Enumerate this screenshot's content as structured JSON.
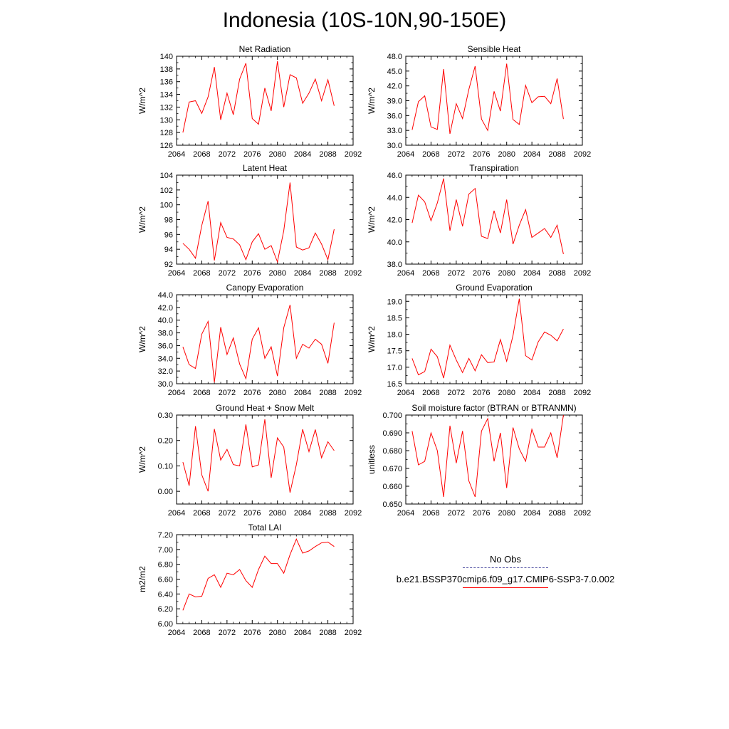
{
  "title": "Indonesia (10S-10N,90-150E)",
  "legend": {
    "obs_label": "No Obs",
    "case_label": "b.e21.BSSP370cmip6.f09_g17.CMIP6-SSP3-7.0.002",
    "obs_color": "#4a4aa0",
    "case_color": "#ff0000"
  },
  "chart_data": [
    {
      "type": "line",
      "title": "Net Radiation",
      "ylabel": "W/m^2",
      "xlim": [
        2064,
        2092
      ],
      "xticks": [
        "2064",
        "2068",
        "2072",
        "2076",
        "2080",
        "2084",
        "2088",
        "2092"
      ],
      "ylim": [
        126,
        140
      ],
      "yticks": [
        "126",
        "128",
        "130",
        "132",
        "134",
        "136",
        "138",
        "140"
      ],
      "x": [
        2065,
        2066,
        2067,
        2068,
        2069,
        2070,
        2071,
        2072,
        2073,
        2074,
        2075,
        2076,
        2077,
        2078,
        2079,
        2080,
        2081,
        2082,
        2083,
        2084,
        2085,
        2086,
        2087,
        2088,
        2089
      ],
      "values": [
        128.0,
        132.8,
        133.0,
        131.0,
        133.6,
        138.3,
        130.0,
        134.2,
        130.8,
        136.4,
        138.9,
        130.2,
        129.3,
        135.0,
        131.4,
        139.2,
        132.0,
        137.1,
        136.6,
        132.6,
        134.2,
        136.4,
        133.0,
        136.3,
        132.2
      ]
    },
    {
      "type": "line",
      "title": "Sensible Heat",
      "ylabel": "W/m^2",
      "xlim": [
        2064,
        2092
      ],
      "xticks": [
        "2064",
        "2068",
        "2072",
        "2076",
        "2080",
        "2084",
        "2088",
        "2092"
      ],
      "ylim": [
        30,
        48
      ],
      "yticks": [
        "30.0",
        "33.0",
        "36.0",
        "39.0",
        "42.0",
        "45.0",
        "48.0"
      ],
      "x": [
        2065,
        2066,
        2067,
        2068,
        2069,
        2070,
        2071,
        2072,
        2073,
        2074,
        2075,
        2076,
        2077,
        2078,
        2079,
        2080,
        2081,
        2082,
        2083,
        2084,
        2085,
        2086,
        2087,
        2088,
        2089
      ],
      "values": [
        33.1,
        38.8,
        40.0,
        33.7,
        33.2,
        45.4,
        32.3,
        38.4,
        35.4,
        41.3,
        46.0,
        35.3,
        33.0,
        40.9,
        36.9,
        46.5,
        35.2,
        34.2,
        42.1,
        38.6,
        39.8,
        39.9,
        38.4,
        43.5,
        35.3
      ]
    },
    {
      "type": "line",
      "title": "Latent Heat",
      "ylabel": "W/m^2",
      "xlim": [
        2064,
        2092
      ],
      "xticks": [
        "2064",
        "2068",
        "2072",
        "2076",
        "2080",
        "2084",
        "2088",
        "2092"
      ],
      "ylim": [
        92,
        104
      ],
      "yticks": [
        "92",
        "94",
        "96",
        "98",
        "100",
        "102",
        "104"
      ],
      "x": [
        2065,
        2066,
        2067,
        2068,
        2069,
        2070,
        2071,
        2072,
        2073,
        2074,
        2075,
        2076,
        2077,
        2078,
        2079,
        2080,
        2081,
        2082,
        2083,
        2084,
        2085,
        2086,
        2087,
        2088,
        2089
      ],
      "values": [
        94.8,
        94.0,
        92.8,
        97.2,
        100.5,
        92.5,
        97.6,
        95.6,
        95.4,
        94.6,
        92.6,
        95.0,
        96.1,
        94.0,
        94.5,
        92.3,
        96.5,
        103.0,
        94.3,
        93.9,
        94.2,
        96.2,
        94.7,
        92.6,
        96.7
      ]
    },
    {
      "type": "line",
      "title": "Transpiration",
      "ylabel": "W/m^2",
      "xlim": [
        2064,
        2092
      ],
      "xticks": [
        "2064",
        "2068",
        "2072",
        "2076",
        "2080",
        "2084",
        "2088",
        "2092"
      ],
      "ylim": [
        38,
        46
      ],
      "yticks": [
        "38.0",
        "40.0",
        "42.0",
        "44.0",
        "46.0"
      ],
      "x": [
        2065,
        2066,
        2067,
        2068,
        2069,
        2070,
        2071,
        2072,
        2073,
        2074,
        2075,
        2076,
        2077,
        2078,
        2079,
        2080,
        2081,
        2082,
        2083,
        2084,
        2085,
        2086,
        2087,
        2088,
        2089
      ],
      "values": [
        41.7,
        44.2,
        43.6,
        41.9,
        43.5,
        45.7,
        41.0,
        43.8,
        41.4,
        44.3,
        44.8,
        40.5,
        40.3,
        42.8,
        40.8,
        43.8,
        39.8,
        41.5,
        42.9,
        40.4,
        40.8,
        41.2,
        40.4,
        41.5,
        38.9
      ]
    },
    {
      "type": "line",
      "title": "Canopy Evaporation",
      "ylabel": "W/m^2",
      "xlim": [
        2064,
        2092
      ],
      "xticks": [
        "2064",
        "2068",
        "2072",
        "2076",
        "2080",
        "2084",
        "2088",
        "2092"
      ],
      "ylim": [
        30,
        44
      ],
      "yticks": [
        "30.0",
        "32.0",
        "34.0",
        "36.0",
        "38.0",
        "40.0",
        "42.0",
        "44.0"
      ],
      "x": [
        2065,
        2066,
        2067,
        2068,
        2069,
        2070,
        2071,
        2072,
        2073,
        2074,
        2075,
        2076,
        2077,
        2078,
        2079,
        2080,
        2081,
        2082,
        2083,
        2084,
        2085,
        2086,
        2087,
        2088,
        2089
      ],
      "values": [
        35.8,
        33.0,
        32.4,
        37.8,
        39.8,
        30.2,
        38.9,
        34.6,
        37.2,
        33.1,
        30.8,
        37.0,
        38.8,
        34.0,
        35.8,
        31.2,
        38.8,
        42.4,
        34.0,
        36.2,
        35.6,
        37.0,
        36.2,
        33.2,
        39.6
      ]
    },
    {
      "type": "line",
      "title": "Ground Evaporation",
      "ylabel": "W/m^2",
      "xlim": [
        2064,
        2092
      ],
      "xticks": [
        "2064",
        "2068",
        "2072",
        "2076",
        "2080",
        "2084",
        "2088",
        "2092"
      ],
      "ylim": [
        16.5,
        19.2
      ],
      "yticks": [
        "16.5",
        "17.0",
        "17.5",
        "18.0",
        "18.5",
        "19.0"
      ],
      "x": [
        2065,
        2066,
        2067,
        2068,
        2069,
        2070,
        2071,
        2072,
        2073,
        2074,
        2075,
        2076,
        2077,
        2078,
        2079,
        2080,
        2081,
        2082,
        2083,
        2084,
        2085,
        2086,
        2087,
        2088,
        2089
      ],
      "values": [
        17.27,
        16.77,
        16.87,
        17.55,
        17.32,
        16.67,
        17.67,
        17.22,
        16.84,
        17.27,
        16.89,
        17.38,
        17.14,
        17.16,
        17.84,
        17.18,
        17.96,
        19.08,
        17.35,
        17.22,
        17.77,
        18.07,
        17.97,
        17.8,
        18.16
      ]
    },
    {
      "type": "line",
      "title": "Ground Heat + Snow Melt",
      "ylabel": "W/m^2",
      "xlim": [
        2064,
        2092
      ],
      "xticks": [
        "2064",
        "2068",
        "2072",
        "2076",
        "2080",
        "2084",
        "2088",
        "2092"
      ],
      "ylim": [
        -0.05,
        0.3
      ],
      "yticks": [
        "0.00",
        "0.10",
        "0.20",
        "0.30"
      ],
      "x": [
        2065,
        2066,
        2067,
        2068,
        2069,
        2070,
        2071,
        2072,
        2073,
        2074,
        2075,
        2076,
        2077,
        2078,
        2079,
        2080,
        2081,
        2082,
        2083,
        2084,
        2085,
        2086,
        2087,
        2088,
        2089
      ],
      "values": [
        0.115,
        0.022,
        0.256,
        0.065,
        0.0,
        0.245,
        0.123,
        0.165,
        0.105,
        0.1,
        0.263,
        0.096,
        0.104,
        0.283,
        0.053,
        0.21,
        0.174,
        -0.005,
        0.105,
        0.244,
        0.156,
        0.243,
        0.132,
        0.195,
        0.16
      ]
    },
    {
      "type": "line",
      "title": "Soil moisture factor (BTRAN or BTRANMN)",
      "ylabel": "unitless",
      "xlim": [
        2064,
        2092
      ],
      "xticks": [
        "2064",
        "2068",
        "2072",
        "2076",
        "2080",
        "2084",
        "2088",
        "2092"
      ],
      "ylim": [
        0.65,
        0.7
      ],
      "yticks": [
        "0.650",
        "0.660",
        "0.670",
        "0.680",
        "0.690",
        "0.700"
      ],
      "x": [
        2065,
        2066,
        2067,
        2068,
        2069,
        2070,
        2071,
        2072,
        2073,
        2074,
        2075,
        2076,
        2077,
        2078,
        2079,
        2080,
        2081,
        2082,
        2083,
        2084,
        2085,
        2086,
        2087,
        2088,
        2089
      ],
      "values": [
        0.691,
        0.672,
        0.674,
        0.69,
        0.68,
        0.654,
        0.694,
        0.673,
        0.691,
        0.663,
        0.654,
        0.691,
        0.698,
        0.674,
        0.69,
        0.659,
        0.693,
        0.681,
        0.674,
        0.692,
        0.682,
        0.682,
        0.69,
        0.676,
        0.7
      ]
    },
    {
      "type": "line",
      "title": "Total LAI",
      "ylabel": "m2/m2",
      "xlim": [
        2064,
        2092
      ],
      "xticks": [
        "2064",
        "2068",
        "2072",
        "2076",
        "2080",
        "2084",
        "2088",
        "2092"
      ],
      "ylim": [
        6.0,
        7.2
      ],
      "yticks": [
        "6.00",
        "6.20",
        "6.40",
        "6.60",
        "6.80",
        "7.00",
        "7.20"
      ],
      "x": [
        2065,
        2066,
        2067,
        2068,
        2069,
        2070,
        2071,
        2072,
        2073,
        2074,
        2075,
        2076,
        2077,
        2078,
        2079,
        2080,
        2081,
        2082,
        2083,
        2084,
        2085,
        2086,
        2087,
        2088,
        2089
      ],
      "values": [
        6.18,
        6.4,
        6.36,
        6.37,
        6.61,
        6.66,
        6.49,
        6.68,
        6.66,
        6.73,
        6.58,
        6.49,
        6.73,
        6.91,
        6.81,
        6.81,
        6.68,
        6.93,
        7.14,
        6.95,
        6.98,
        7.04,
        7.09,
        7.1,
        7.04
      ]
    }
  ]
}
